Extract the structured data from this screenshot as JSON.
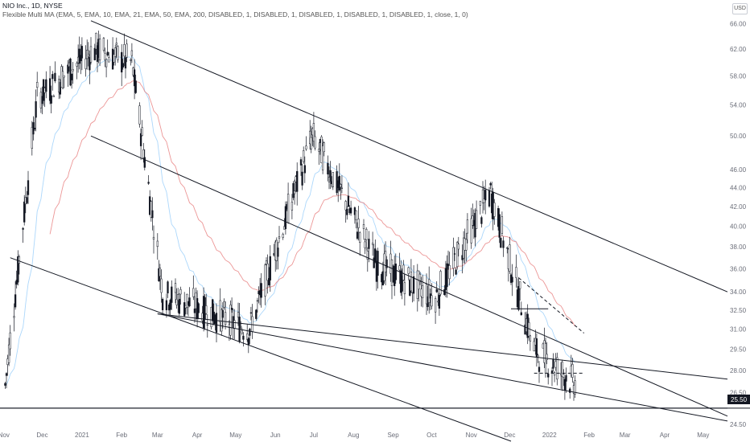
{
  "legend": {
    "symbol_line": "NIO Inc., 1D, NYSE",
    "indicator_line": "Flexible Multi MA (EMA, 5, EMA, 10, EMA, 21, EMA, 50, EMA, 200, DISABLED, 1, DISABLED, 1, DISABLED, 1, DISABLED, 1, DISABLED, 1, close, 1, 0)"
  },
  "currency_button": "USD",
  "price_tag": "25.50",
  "colors": {
    "up_candle": "#26a69a",
    "down_candle": "#ef5350",
    "line": "#131722",
    "ema_short": "#90caf9",
    "ema_long": "#e57373"
  },
  "chart_data": {
    "type": "candlestick",
    "title": "",
    "xlabel": "",
    "ylabel": "",
    "ylim": [
      24.5,
      67.0
    ],
    "y_scale": "log",
    "y_ticks": [
      "66.00",
      "62.00",
      "58.00",
      "54.00",
      "50.00",
      "46.00",
      "44.00",
      "42.00",
      "40.00",
      "38.00",
      "36.00",
      "34.00",
      "32.50",
      "31.00",
      "29.50",
      "28.00",
      "26.50",
      "24.50"
    ],
    "x_ticks": [
      "Nov",
      "Dec",
      "2021",
      "Feb",
      "Mar",
      "Apr",
      "May",
      "Jun",
      "Jul",
      "Aug",
      "Sep",
      "Oct",
      "Nov",
      "Dec",
      "2022",
      "Feb",
      "Mar",
      "Apr",
      "May"
    ],
    "x_tick_dates": [
      "2020-11-01",
      "2020-12-01",
      "2021-01-01",
      "2021-02-01",
      "2021-03-01",
      "2021-04-01",
      "2021-05-01",
      "2021-06-01",
      "2021-07-01",
      "2021-08-01",
      "2021-09-01",
      "2021-10-01",
      "2021-11-01",
      "2021-12-01",
      "2022-01-01",
      "2022-02-01",
      "2022-03-01",
      "2022-04-01",
      "2022-05-01"
    ],
    "x_range": [
      "2020-10-29",
      "2022-05-20"
    ],
    "grid": false,
    "legend": "top-left",
    "key_points": [
      {
        "date": "2020-11-02",
        "close": 27.0
      },
      {
        "date": "2020-11-27",
        "close": 55.0
      },
      {
        "date": "2021-01-11",
        "close": 62.0
      },
      {
        "date": "2021-02-09",
        "close": 60.0
      },
      {
        "date": "2021-03-05",
        "close": 34.0
      },
      {
        "date": "2021-05-12",
        "close": 31.0
      },
      {
        "date": "2021-06-30",
        "close": 50.0
      },
      {
        "date": "2021-08-19",
        "close": 36.5
      },
      {
        "date": "2021-10-04",
        "close": 33.5
      },
      {
        "date": "2021-11-16",
        "close": 43.5
      },
      {
        "date": "2021-12-20",
        "close": 29.5
      },
      {
        "date": "2022-01-21",
        "close": 27.1
      }
    ],
    "trendlines": [
      {
        "from": {
          "date": "2021-01-08",
          "price": 66.5
        },
        "to": {
          "date": "2022-05-20",
          "price": 34.0
        }
      },
      {
        "from": {
          "date": "2021-01-08",
          "price": 50.0
        },
        "to": {
          "date": "2022-05-20",
          "price": 25.0
        }
      },
      {
        "from": {
          "date": "2020-11-06",
          "price": 37.0
        },
        "to": {
          "date": "2021-12-02",
          "price": 23.5
        }
      },
      {
        "from": {
          "date": "2021-03-01",
          "price": 32.2
        },
        "to": {
          "date": "2022-05-20",
          "price": 27.4
        }
      },
      {
        "from": {
          "date": "2021-03-01",
          "price": 32.2
        },
        "to": {
          "date": "2022-05-20",
          "price": 24.7
        }
      },
      {
        "from": {
          "date": "2020-10-29",
          "price": 25.5
        },
        "to": {
          "date": "2022-05-20",
          "price": 25.5
        }
      }
    ],
    "support_line": 25.5,
    "patterns": [
      {
        "kind": "dashed",
        "from": {
          "date": "2021-12-08",
          "price": 35.2
        },
        "to": {
          "date": "2022-01-28",
          "price": 30.7
        }
      },
      {
        "kind": "dashed",
        "from": {
          "date": "2021-12-20",
          "price": 27.8
        },
        "to": {
          "date": "2022-01-28",
          "price": 27.8
        }
      },
      {
        "kind": "solid",
        "from": {
          "date": "2021-12-02",
          "price": 32.6
        },
        "to": {
          "date": "2021-12-31",
          "price": 32.6
        }
      }
    ]
  }
}
